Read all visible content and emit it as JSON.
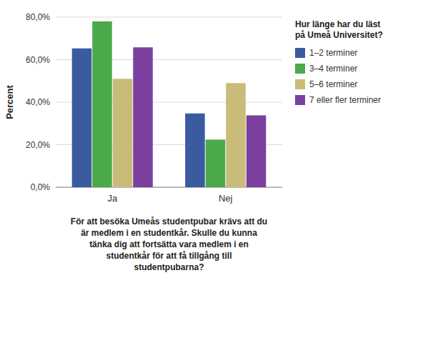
{
  "chart_data": {
    "type": "bar",
    "categories": [
      "Ja",
      "Nej"
    ],
    "series": [
      {
        "name": "1–2 terminer",
        "color": "#3a5ba0",
        "values": [
          65.3,
          34.7
        ]
      },
      {
        "name": "3–4 terminer",
        "color": "#4aaa4a",
        "values": [
          78.0,
          22.4
        ]
      },
      {
        "name": "5–6 terminer",
        "color": "#c8bc78",
        "values": [
          51.0,
          49.0
        ]
      },
      {
        "name": "7 eller fler terminer",
        "color": "#7b3f9e",
        "values": [
          65.8,
          33.8
        ]
      }
    ],
    "ylabel": "Percent",
    "xlabel": "För att besöka Umeås studentpubar krävs att du\när medlem i en studentkår. Skulle du kunna\ntänka dig att fortsätta vara medlem i en\nstudentkår för att få tillgång till\nstudentpubarna?",
    "legend_title": "Hur länge har du läst\npå Umeå Universitet?",
    "ylim": [
      0,
      80
    ],
    "yticks": [
      {
        "value": 0,
        "label": "0,0%"
      },
      {
        "value": 20,
        "label": "20,0%"
      },
      {
        "value": 40,
        "label": "40,0%"
      },
      {
        "value": 60,
        "label": "60,0%"
      },
      {
        "value": 80,
        "label": "80,0%"
      }
    ],
    "grid": true,
    "legend": "right"
  }
}
